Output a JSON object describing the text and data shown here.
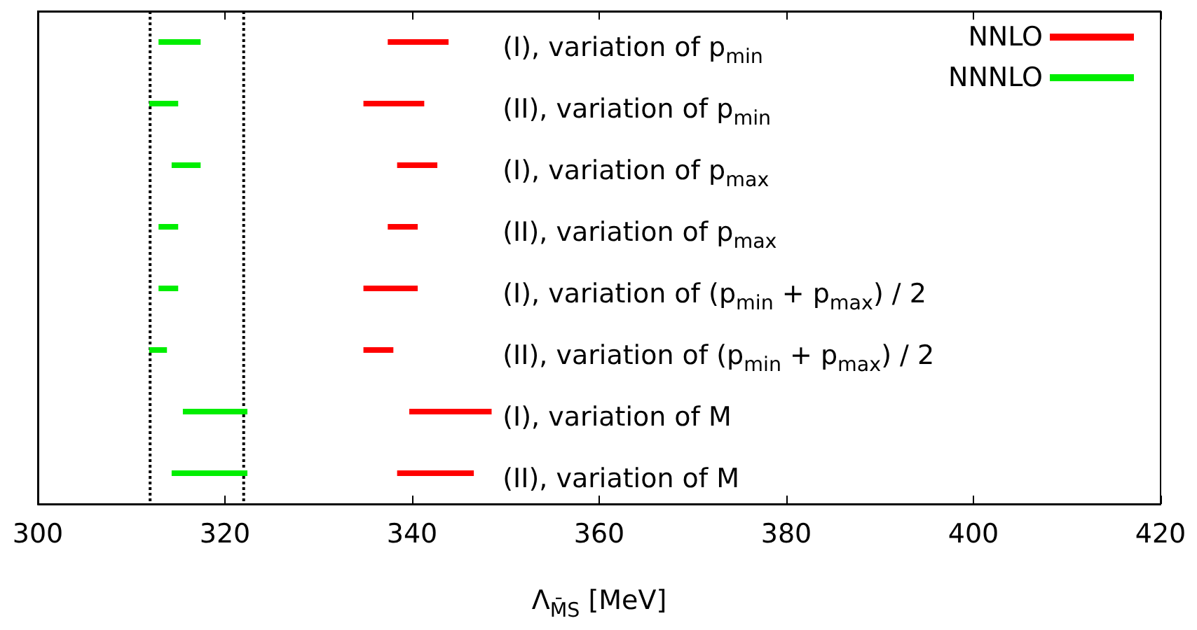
{
  "chart_data": {
    "type": "bar",
    "orientation": "horizontal",
    "xlabel": "Λ$_{M̄S}$ [MeV]",
    "categories": [
      "(I), variation of p$_{min}$",
      "(II), variation of p$_{min}$",
      "(I), variation of p$_{max}$",
      "(II), variation of p$_{max}$",
      "(I), variation of (p$_{min}$ + p$_{max}$) / 2",
      "(II), variation of (p$_{min}$ + p$_{max}$) / 2",
      "(I), variation of M",
      "(II), variation of M"
    ],
    "series": [
      {
        "name": "NNLO",
        "color": "#ff0000",
        "base": [
          337.4,
          334.8,
          338.4,
          337.4,
          334.8,
          334.8,
          339.7,
          338.4
        ],
        "values": [
          6.5,
          6.5,
          4.3,
          3.2,
          5.8,
          3.2,
          8.8,
          8.2
        ]
      },
      {
        "name": "NNNLO",
        "color": "#00ee00",
        "base": [
          312.9,
          311.9,
          314.3,
          312.9,
          312.9,
          311.9,
          315.5,
          314.3
        ],
        "values": [
          4.5,
          3.1,
          3.1,
          2.1,
          2.1,
          1.9,
          6.9,
          8.1
        ]
      }
    ],
    "xlim": [
      300,
      420
    ],
    "xticks": [
      300,
      320,
      340,
      360,
      380,
      400,
      420
    ],
    "ref_lines": [
      {
        "axis": "x",
        "value": 312.0,
        "color": "#000000",
        "line_style": "dotted"
      },
      {
        "axis": "x",
        "value": 322.0,
        "color": "#000000",
        "line_style": "dotted"
      }
    ],
    "legend": "top right",
    "grid": false
  }
}
